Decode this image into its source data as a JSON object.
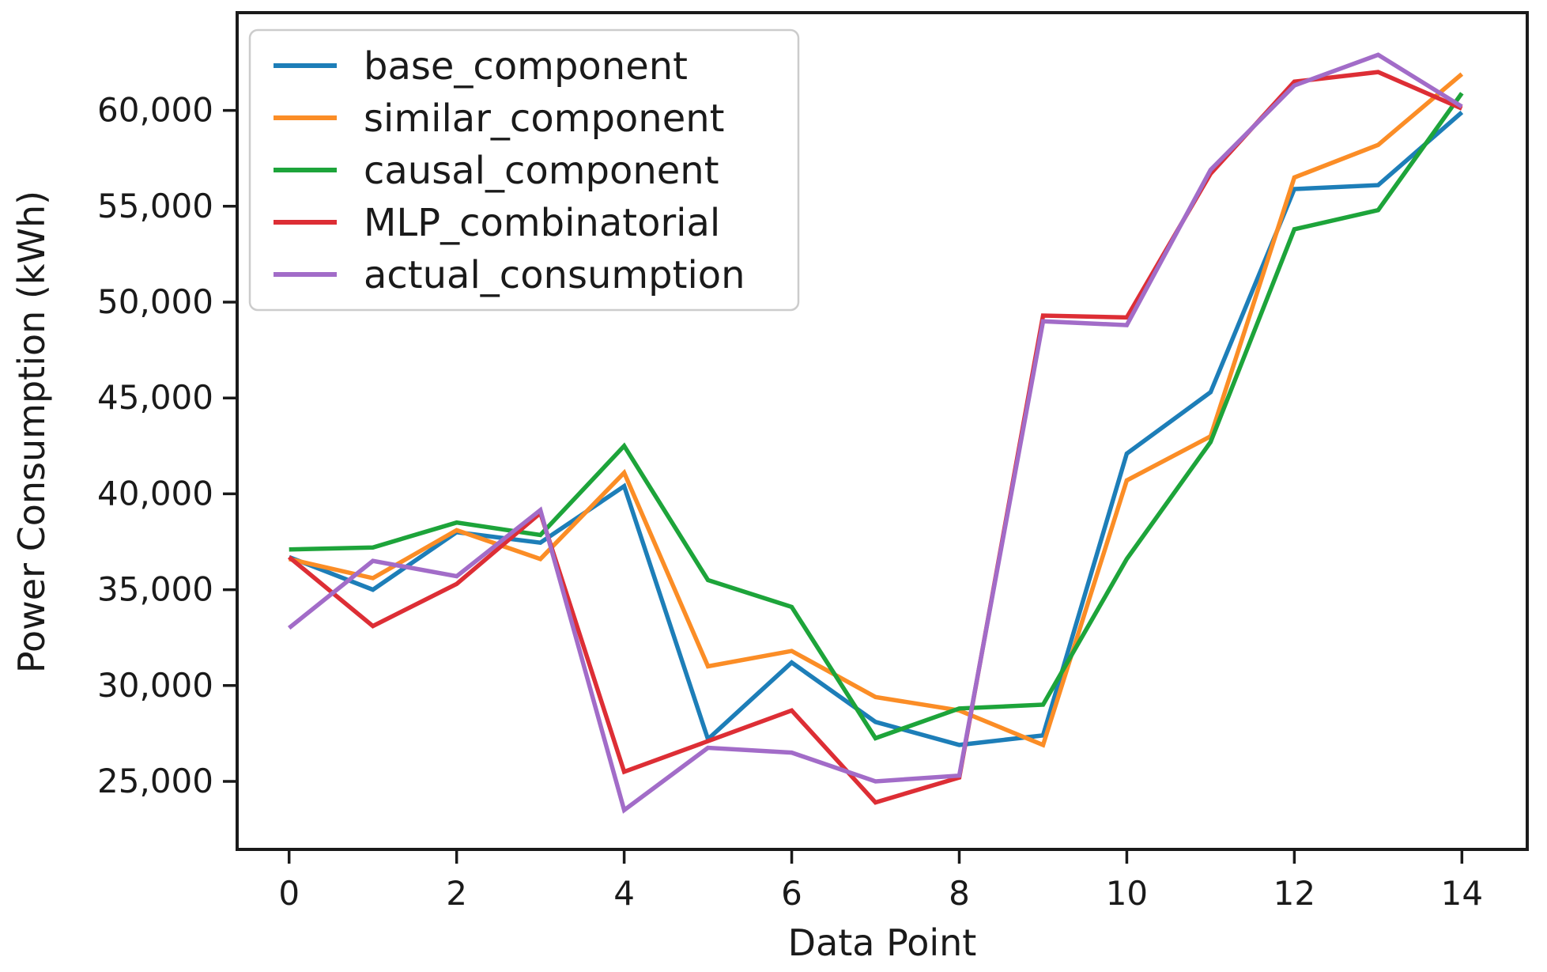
{
  "figure": {
    "background": "#ffffff",
    "text_color": "#1a1a1a",
    "spine_color": "#1a1a1a"
  },
  "chart_data": {
    "type": "line",
    "title": "",
    "xlabel": "Data Point",
    "ylabel": "Power Consumption (kWh)",
    "grid": false,
    "legend_position": "upper left",
    "xlim": [
      -0.62,
      14.78
    ],
    "ylim": [
      21450,
      65100
    ],
    "x": [
      0,
      1,
      2,
      3,
      4,
      5,
      6,
      7,
      8,
      9,
      10,
      11,
      12,
      13,
      14
    ],
    "xticks": {
      "values": [
        0,
        2,
        4,
        6,
        8,
        10,
        12,
        14
      ],
      "labels": [
        "0",
        "2",
        "4",
        "6",
        "8",
        "10",
        "12",
        "14"
      ]
    },
    "yticks": {
      "values": [
        25000,
        30000,
        35000,
        40000,
        45000,
        50000,
        55000,
        60000
      ],
      "labels": [
        "25,000",
        "30,000",
        "35,000",
        "40,000",
        "45,000",
        "50,000",
        "55,000",
        "60,000"
      ]
    },
    "series": [
      {
        "name": "base_component",
        "color": "#1d7eb8",
        "values": [
          36700,
          35000,
          38000,
          37450,
          40400,
          27200,
          31200,
          28100,
          26900,
          27400,
          42100,
          45300,
          55900,
          56100,
          59900
        ]
      },
      {
        "name": "similar_component",
        "color": "#fb8d26",
        "values": [
          36600,
          35600,
          38100,
          36600,
          41100,
          31000,
          31800,
          29400,
          28700,
          26900,
          40700,
          43000,
          56500,
          58200,
          61900
        ]
      },
      {
        "name": "causal_component",
        "color": "#1da43a",
        "values": [
          37100,
          37200,
          38500,
          37850,
          42500,
          35500,
          34100,
          27250,
          28800,
          29000,
          36600,
          42700,
          53800,
          54800,
          60900
        ]
      },
      {
        "name": "MLP_combinatorial",
        "color": "#dd2e35",
        "values": [
          36700,
          33100,
          35300,
          39000,
          25500,
          27100,
          28700,
          23900,
          25200,
          49300,
          49200,
          56700,
          61500,
          62000,
          60100
        ]
      },
      {
        "name": "actual_consumption",
        "color": "#a26cc8",
        "values": [
          33000,
          36500,
          35700,
          39150,
          23500,
          26750,
          26500,
          25000,
          25300,
          49000,
          48800,
          56900,
          61300,
          62900,
          60200
        ]
      }
    ]
  }
}
